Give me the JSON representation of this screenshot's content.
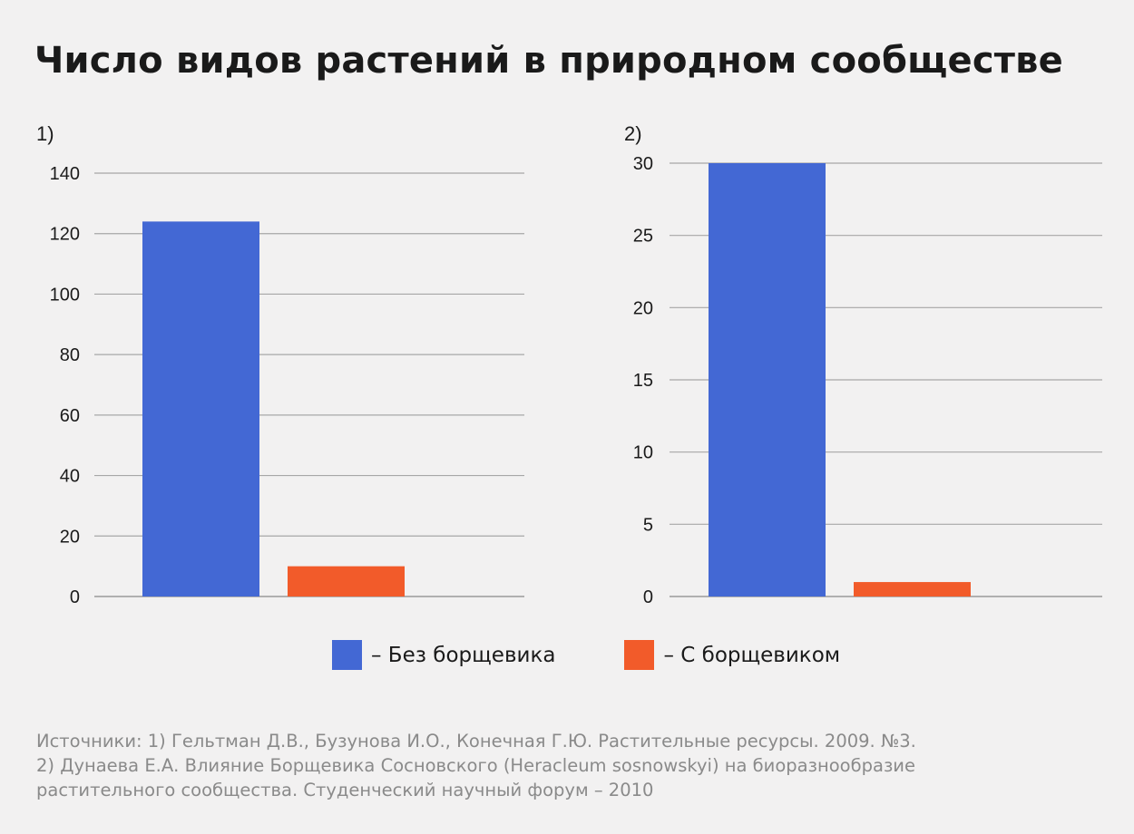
{
  "title": "Число видов растений в природном сообществе",
  "legend": [
    {
      "label": "– Без борщевика",
      "color": "#4368d4"
    },
    {
      "label": "– С борщевиком",
      "color": "#f25b2a"
    }
  ],
  "sources": [
    "Источники: 1) Гельтман Д.В., Бузунова И.О., Конечная Г.Ю. Растительные ресурсы. 2009. №3.",
    "2) Дунаева Е.А. Влияние Борщевика Сосновского (Heracleum sosnowskyi) на биоразнообразие",
    "растительного сообщества. Студенческий научный форум – 2010"
  ],
  "chart_data": [
    {
      "type": "bar",
      "panel_label": "1)",
      "categories": [
        "Без борщевика",
        "С борщевиком"
      ],
      "values": [
        124,
        10
      ],
      "colors": [
        "#4368d4",
        "#f25b2a"
      ],
      "yticks": [
        0,
        20,
        40,
        60,
        80,
        100,
        120,
        140
      ],
      "ylim": [
        0,
        140
      ],
      "grid": true
    },
    {
      "type": "bar",
      "panel_label": "2)",
      "categories": [
        "Без борщевика",
        "С борщевиком"
      ],
      "values": [
        30,
        1
      ],
      "colors": [
        "#4368d4",
        "#f25b2a"
      ],
      "yticks": [
        0,
        5,
        10,
        15,
        20,
        25,
        30
      ],
      "ylim": [
        0,
        30
      ],
      "grid": true
    }
  ]
}
